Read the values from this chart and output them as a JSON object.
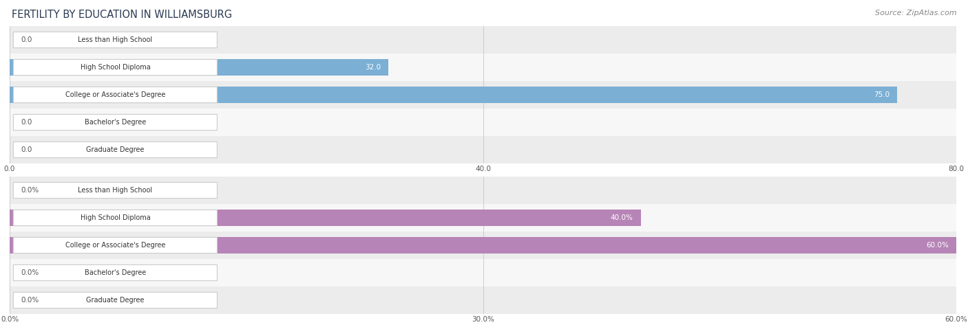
{
  "title": "FERTILITY BY EDUCATION IN WILLIAMSBURG",
  "source": "Source: ZipAtlas.com",
  "top_chart": {
    "categories": [
      "Less than High School",
      "High School Diploma",
      "College or Associate's Degree",
      "Bachelor's Degree",
      "Graduate Degree"
    ],
    "values": [
      0.0,
      32.0,
      75.0,
      0.0,
      0.0
    ],
    "bar_color": "#7bafd4",
    "value_label_color_inside": "#ffffff",
    "value_label_color_outside": "#555555",
    "xlim": [
      0,
      80.0
    ],
    "xticks": [
      0.0,
      40.0,
      80.0
    ],
    "xtick_labels": [
      "0.0",
      "40.0",
      "80.0"
    ],
    "row_bg_even": "#ececec",
    "row_bg_odd": "#f7f7f7"
  },
  "bottom_chart": {
    "categories": [
      "Less than High School",
      "High School Diploma",
      "College or Associate's Degree",
      "Bachelor's Degree",
      "Graduate Degree"
    ],
    "values": [
      0.0,
      40.0,
      60.0,
      0.0,
      0.0
    ],
    "bar_color": "#b784b7",
    "value_label_color_inside": "#ffffff",
    "value_label_color_outside": "#555555",
    "xlim": [
      0,
      60.0
    ],
    "xticks": [
      0.0,
      30.0,
      60.0
    ],
    "xtick_labels": [
      "0.0%",
      "30.0%",
      "60.0%"
    ],
    "row_bg_even": "#ececec",
    "row_bg_odd": "#f7f7f7"
  },
  "fig_bg_color": "#ffffff",
  "title_color": "#2b3a52",
  "title_fontsize": 10.5,
  "source_fontsize": 8,
  "label_fontsize": 7,
  "value_fontsize": 7.5,
  "tick_fontsize": 7.5,
  "bar_height": 0.62
}
